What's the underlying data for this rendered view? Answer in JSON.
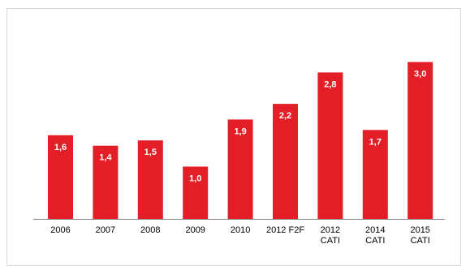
{
  "chart_data": {
    "type": "bar",
    "title": "",
    "xlabel": "",
    "ylabel": "",
    "categories": [
      [
        "2006"
      ],
      [
        "2007"
      ],
      [
        "2008"
      ],
      [
        "2009"
      ],
      [
        "2010"
      ],
      [
        "2012 F2F"
      ],
      [
        "2012",
        "CATI"
      ],
      [
        "2014",
        "CATI"
      ],
      [
        "2015",
        "CATI"
      ]
    ],
    "values": [
      1.6,
      1.4,
      1.5,
      1.0,
      1.9,
      2.2,
      2.8,
      1.7,
      3.0
    ],
    "value_labels": [
      "1,6",
      "1,4",
      "1,5",
      "1,0",
      "1,9",
      "2,2",
      "2,8",
      "1,7",
      "3,0"
    ],
    "ylim": [
      0,
      3.1
    ],
    "grid": false,
    "legend": "none",
    "bar_color": "#E31E26",
    "axis_color": "#808080"
  }
}
